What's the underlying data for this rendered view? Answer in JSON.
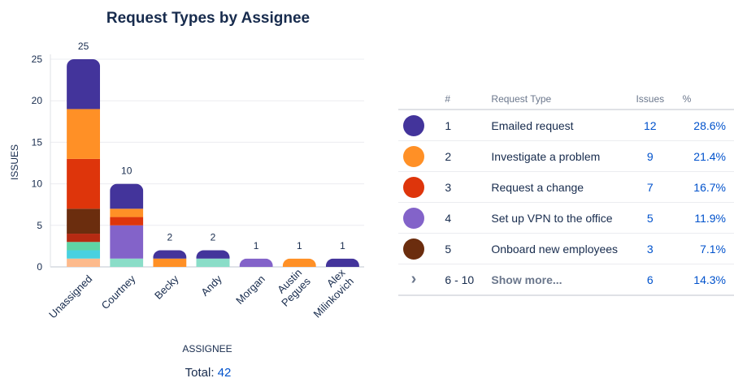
{
  "chart_data": {
    "type": "bar",
    "stacked": true,
    "title": "Request Types by Assignee",
    "xlabel": "ASSIGNEE",
    "ylabel": "ISSUES",
    "ylim": [
      0,
      25
    ],
    "yticks": [
      "0",
      "5",
      "10",
      "15",
      "20",
      "25"
    ],
    "grid": true,
    "categories": [
      {
        "lines": [
          "Unassigned"
        ]
      },
      {
        "lines": [
          "Courtney"
        ]
      },
      {
        "lines": [
          "Becky"
        ]
      },
      {
        "lines": [
          "Andy"
        ]
      },
      {
        "lines": [
          "Morgan"
        ]
      },
      {
        "lines": [
          "Austin",
          "Pegues"
        ]
      },
      {
        "lines": [
          "Alex",
          "Milinkovich"
        ]
      }
    ],
    "totals": [
      "25",
      "10",
      "2",
      "2",
      "1",
      "1",
      "1"
    ],
    "stacks": [
      [
        {
          "value": 1,
          "color": "#FDBA8C"
        },
        {
          "value": 1,
          "color": "#48D1E0"
        },
        {
          "value": 1,
          "color": "#5ED3A6"
        },
        {
          "value": 1,
          "color": "#B62A12"
        },
        {
          "value": 3,
          "color": "#6B2D0E"
        },
        {
          "value": 6,
          "color": "#DE350B"
        },
        {
          "value": 6,
          "color": "#FF9026"
        },
        {
          "value": 6,
          "color": "#43349B"
        }
      ],
      [
        {
          "value": 1,
          "color": "#8ADDC8"
        },
        {
          "value": 4,
          "color": "#8363C9"
        },
        {
          "value": 1,
          "color": "#DE350B"
        },
        {
          "value": 1,
          "color": "#FF9026"
        },
        {
          "value": 3,
          "color": "#43349B"
        }
      ],
      [
        {
          "value": 1,
          "color": "#FF9026"
        },
        {
          "value": 1,
          "color": "#43349B"
        }
      ],
      [
        {
          "value": 1,
          "color": "#8ADDC8"
        },
        {
          "value": 1,
          "color": "#43349B"
        }
      ],
      [
        {
          "value": 1,
          "color": "#8363C9"
        }
      ],
      [
        {
          "value": 1,
          "color": "#FF9026"
        }
      ],
      [
        {
          "value": 1,
          "color": "#43349B"
        }
      ]
    ]
  },
  "total": {
    "label": "Total:",
    "value": "42"
  },
  "legend_table": {
    "headers": {
      "num": "#",
      "type": "Request Type",
      "issues": "Issues",
      "pct": "%"
    },
    "rows": [
      {
        "color": "#43349B",
        "num": "1",
        "type": "Emailed request",
        "issues": "12",
        "pct": "28.6%"
      },
      {
        "color": "#FF9026",
        "num": "2",
        "type": "Investigate a problem",
        "issues": "9",
        "pct": "21.4%"
      },
      {
        "color": "#DE350B",
        "num": "3",
        "type": "Request a change",
        "issues": "7",
        "pct": "16.7%"
      },
      {
        "color": "#8363C9",
        "num": "4",
        "type": "Set up VPN to the office",
        "issues": "5",
        "pct": "11.9%"
      },
      {
        "color": "#6B2D0E",
        "num": "5",
        "type": "Onboard new employees",
        "issues": "3",
        "pct": "7.1%"
      }
    ],
    "more": {
      "icon": "chevron-right-icon",
      "num": "6 - 10",
      "label": "Show more...",
      "issues": "6",
      "pct": "14.3%"
    }
  }
}
